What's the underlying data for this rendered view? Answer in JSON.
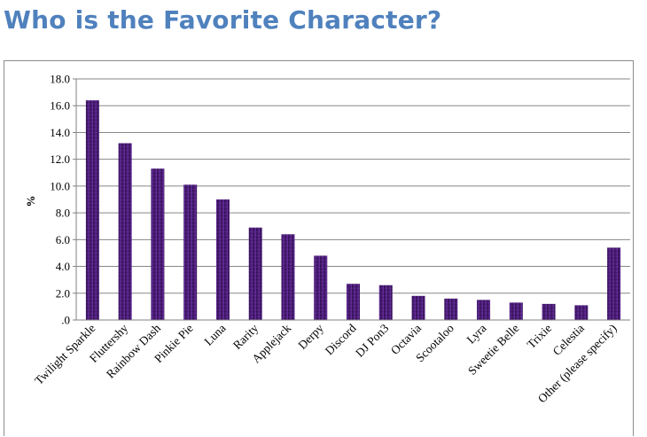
{
  "page": {
    "title": "Who is the Favorite Character?"
  },
  "colors": {
    "title": "#4f81bd",
    "bar_dark": "#2a0d47",
    "bar_mid": "#4b1d78",
    "bar_light": "#6a2fa0",
    "grid": "#878787",
    "axis": "#808080"
  },
  "chart_data": {
    "type": "bar",
    "title": "",
    "xlabel": "",
    "ylabel": "%",
    "ylim": [
      0,
      18
    ],
    "y_ticks": [
      {
        "value": 0,
        "label": ".0"
      },
      {
        "value": 2,
        "label": "2.0"
      },
      {
        "value": 4,
        "label": "4.0"
      },
      {
        "value": 6,
        "label": "6.0"
      },
      {
        "value": 8,
        "label": "8.0"
      },
      {
        "value": 10,
        "label": "10.0"
      },
      {
        "value": 12,
        "label": "12.0"
      },
      {
        "value": 14,
        "label": "14.0"
      },
      {
        "value": 16,
        "label": "16.0"
      },
      {
        "value": 18,
        "label": "18.0"
      }
    ],
    "grid": true,
    "legend": "none",
    "categories": [
      "Twilight Sparkle",
      "Fluttershy",
      "Rainbow Dash",
      "Pinkie Pie",
      "Luna",
      "Rarity",
      "Applejack",
      "Derpy",
      "Discord",
      "DJ Pon3",
      "Octavia",
      "Scootaloo",
      "Lyra",
      "Sweetie Belle",
      "Trixie",
      "Celestia",
      "Other (please specify)"
    ],
    "values": [
      16.4,
      13.2,
      11.3,
      10.1,
      9.0,
      6.9,
      6.4,
      4.8,
      2.7,
      2.6,
      1.8,
      1.6,
      1.5,
      1.3,
      1.2,
      1.1,
      5.4
    ]
  }
}
